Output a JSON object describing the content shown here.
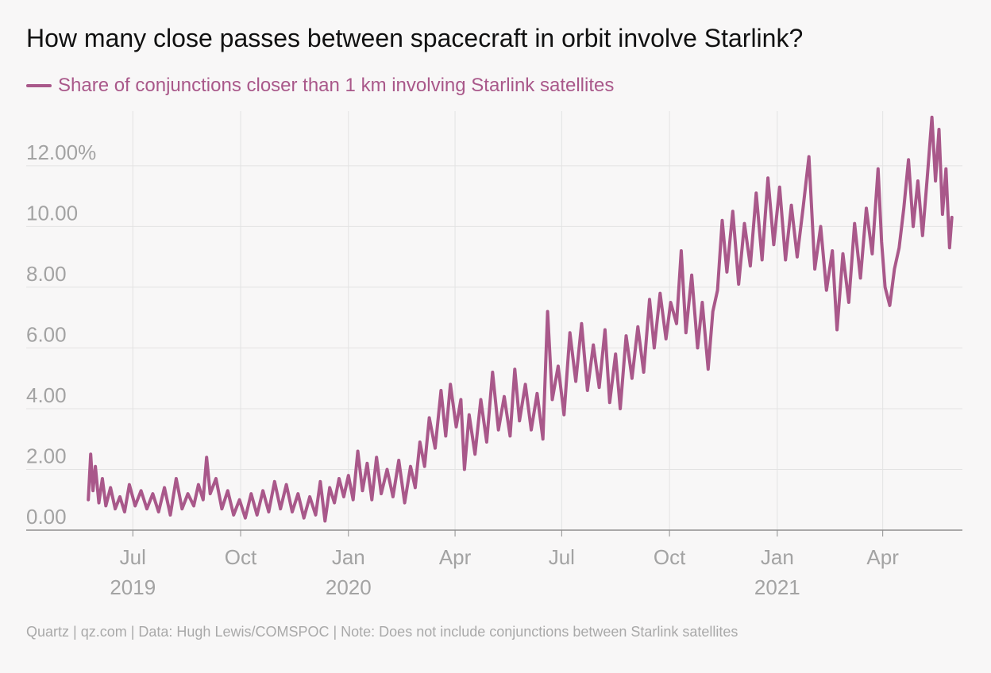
{
  "title": "How many close passes between spacecraft in orbit involve Starlink?",
  "footer": "Quartz | qz.com | Data: Hugh Lewis/COMSPOC | Note: Does not include conjunctions between Starlink satellites",
  "colors": {
    "series": "#a9588a",
    "grid": "#e3e3e3",
    "axis": "#8f8f8f",
    "tick_label": "#a3a3a3"
  },
  "chart_data": {
    "type": "line",
    "title": "How many close passes between spacecraft in orbit involve Starlink?",
    "xlabel": "",
    "ylabel": "",
    "xlim": [
      "2019-04-01",
      "2021-06-08"
    ],
    "ylim": [
      0,
      13.8
    ],
    "grid": true,
    "legend_position": "top-left",
    "y_ticks": [
      {
        "value": 0,
        "label": "0.00"
      },
      {
        "value": 2,
        "label": "2.00"
      },
      {
        "value": 4,
        "label": "4.00"
      },
      {
        "value": 6,
        "label": "6.00"
      },
      {
        "value": 8,
        "label": "8.00"
      },
      {
        "value": 10,
        "label": "10.00"
      },
      {
        "value": 12,
        "label": "12.00%"
      }
    ],
    "x_ticks": [
      {
        "date": "2019-07-01",
        "label": "Jul",
        "year": "2019"
      },
      {
        "date": "2019-10-01",
        "label": "Oct",
        "year": ""
      },
      {
        "date": "2020-01-01",
        "label": "Jan",
        "year": "2020"
      },
      {
        "date": "2020-04-01",
        "label": "Apr",
        "year": ""
      },
      {
        "date": "2020-07-01",
        "label": "Jul",
        "year": ""
      },
      {
        "date": "2020-10-01",
        "label": "Oct",
        "year": ""
      },
      {
        "date": "2021-01-01",
        "label": "Jan",
        "year": "2021"
      },
      {
        "date": "2021-04-01",
        "label": "Apr",
        "year": ""
      }
    ],
    "series": [
      {
        "name": "Share of conjunctions closer than 1 km involving Starlink satellites",
        "points": [
          {
            "x": "2019-05-24",
            "y": 1.0
          },
          {
            "x": "2019-05-26",
            "y": 2.5
          },
          {
            "x": "2019-05-28",
            "y": 1.3
          },
          {
            "x": "2019-05-30",
            "y": 2.1
          },
          {
            "x": "2019-06-02",
            "y": 0.9
          },
          {
            "x": "2019-06-05",
            "y": 1.7
          },
          {
            "x": "2019-06-08",
            "y": 0.8
          },
          {
            "x": "2019-06-12",
            "y": 1.4
          },
          {
            "x": "2019-06-16",
            "y": 0.7
          },
          {
            "x": "2019-06-20",
            "y": 1.1
          },
          {
            "x": "2019-06-24",
            "y": 0.6
          },
          {
            "x": "2019-06-28",
            "y": 1.5
          },
          {
            "x": "2019-07-03",
            "y": 0.8
          },
          {
            "x": "2019-07-08",
            "y": 1.3
          },
          {
            "x": "2019-07-13",
            "y": 0.7
          },
          {
            "x": "2019-07-18",
            "y": 1.2
          },
          {
            "x": "2019-07-23",
            "y": 0.6
          },
          {
            "x": "2019-07-28",
            "y": 1.4
          },
          {
            "x": "2019-08-02",
            "y": 0.5
          },
          {
            "x": "2019-08-07",
            "y": 1.7
          },
          {
            "x": "2019-08-12",
            "y": 0.7
          },
          {
            "x": "2019-08-17",
            "y": 1.2
          },
          {
            "x": "2019-08-22",
            "y": 0.8
          },
          {
            "x": "2019-08-26",
            "y": 1.5
          },
          {
            "x": "2019-08-30",
            "y": 1.0
          },
          {
            "x": "2019-09-02",
            "y": 2.4
          },
          {
            "x": "2019-09-05",
            "y": 1.2
          },
          {
            "x": "2019-09-10",
            "y": 1.7
          },
          {
            "x": "2019-09-15",
            "y": 0.7
          },
          {
            "x": "2019-09-20",
            "y": 1.3
          },
          {
            "x": "2019-09-25",
            "y": 0.5
          },
          {
            "x": "2019-09-30",
            "y": 1.0
          },
          {
            "x": "2019-10-05",
            "y": 0.4
          },
          {
            "x": "2019-10-10",
            "y": 1.2
          },
          {
            "x": "2019-10-15",
            "y": 0.5
          },
          {
            "x": "2019-10-20",
            "y": 1.3
          },
          {
            "x": "2019-10-25",
            "y": 0.6
          },
          {
            "x": "2019-10-30",
            "y": 1.6
          },
          {
            "x": "2019-11-04",
            "y": 0.7
          },
          {
            "x": "2019-11-09",
            "y": 1.5
          },
          {
            "x": "2019-11-14",
            "y": 0.6
          },
          {
            "x": "2019-11-19",
            "y": 1.2
          },
          {
            "x": "2019-11-24",
            "y": 0.4
          },
          {
            "x": "2019-11-29",
            "y": 1.1
          },
          {
            "x": "2019-12-04",
            "y": 0.5
          },
          {
            "x": "2019-12-08",
            "y": 1.6
          },
          {
            "x": "2019-12-12",
            "y": 0.3
          },
          {
            "x": "2019-12-16",
            "y": 1.4
          },
          {
            "x": "2019-12-20",
            "y": 0.9
          },
          {
            "x": "2019-12-24",
            "y": 1.7
          },
          {
            "x": "2019-12-28",
            "y": 1.1
          },
          {
            "x": "2020-01-01",
            "y": 1.8
          },
          {
            "x": "2020-01-05",
            "y": 1.0
          },
          {
            "x": "2020-01-09",
            "y": 2.6
          },
          {
            "x": "2020-01-13",
            "y": 1.3
          },
          {
            "x": "2020-01-17",
            "y": 2.2
          },
          {
            "x": "2020-01-21",
            "y": 1.0
          },
          {
            "x": "2020-01-25",
            "y": 2.4
          },
          {
            "x": "2020-01-29",
            "y": 1.2
          },
          {
            "x": "2020-02-03",
            "y": 2.0
          },
          {
            "x": "2020-02-08",
            "y": 1.1
          },
          {
            "x": "2020-02-13",
            "y": 2.3
          },
          {
            "x": "2020-02-18",
            "y": 0.9
          },
          {
            "x": "2020-02-23",
            "y": 2.1
          },
          {
            "x": "2020-02-27",
            "y": 1.4
          },
          {
            "x": "2020-03-02",
            "y": 2.9
          },
          {
            "x": "2020-03-06",
            "y": 2.1
          },
          {
            "x": "2020-03-10",
            "y": 3.7
          },
          {
            "x": "2020-03-15",
            "y": 2.7
          },
          {
            "x": "2020-03-20",
            "y": 4.6
          },
          {
            "x": "2020-03-24",
            "y": 3.1
          },
          {
            "x": "2020-03-28",
            "y": 4.8
          },
          {
            "x": "2020-04-02",
            "y": 3.4
          },
          {
            "x": "2020-04-06",
            "y": 4.3
          },
          {
            "x": "2020-04-09",
            "y": 2.0
          },
          {
            "x": "2020-04-13",
            "y": 3.8
          },
          {
            "x": "2020-04-18",
            "y": 2.5
          },
          {
            "x": "2020-04-23",
            "y": 4.3
          },
          {
            "x": "2020-04-28",
            "y": 2.9
          },
          {
            "x": "2020-05-03",
            "y": 5.2
          },
          {
            "x": "2020-05-08",
            "y": 3.3
          },
          {
            "x": "2020-05-13",
            "y": 4.4
          },
          {
            "x": "2020-05-18",
            "y": 3.1
          },
          {
            "x": "2020-05-22",
            "y": 5.3
          },
          {
            "x": "2020-05-26",
            "y": 3.6
          },
          {
            "x": "2020-05-31",
            "y": 4.8
          },
          {
            "x": "2020-06-05",
            "y": 3.3
          },
          {
            "x": "2020-06-10",
            "y": 4.5
          },
          {
            "x": "2020-06-15",
            "y": 3.0
          },
          {
            "x": "2020-06-19",
            "y": 7.2
          },
          {
            "x": "2020-06-23",
            "y": 4.3
          },
          {
            "x": "2020-06-28",
            "y": 5.4
          },
          {
            "x": "2020-07-03",
            "y": 3.8
          },
          {
            "x": "2020-07-08",
            "y": 6.5
          },
          {
            "x": "2020-07-13",
            "y": 4.9
          },
          {
            "x": "2020-07-18",
            "y": 6.8
          },
          {
            "x": "2020-07-23",
            "y": 4.6
          },
          {
            "x": "2020-07-28",
            "y": 6.1
          },
          {
            "x": "2020-08-02",
            "y": 4.7
          },
          {
            "x": "2020-08-07",
            "y": 6.6
          },
          {
            "x": "2020-08-11",
            "y": 4.2
          },
          {
            "x": "2020-08-16",
            "y": 5.8
          },
          {
            "x": "2020-08-20",
            "y": 4.0
          },
          {
            "x": "2020-08-25",
            "y": 6.4
          },
          {
            "x": "2020-08-30",
            "y": 5.0
          },
          {
            "x": "2020-09-04",
            "y": 6.7
          },
          {
            "x": "2020-09-09",
            "y": 5.2
          },
          {
            "x": "2020-09-14",
            "y": 7.6
          },
          {
            "x": "2020-09-18",
            "y": 6.0
          },
          {
            "x": "2020-09-23",
            "y": 7.8
          },
          {
            "x": "2020-09-28",
            "y": 6.3
          },
          {
            "x": "2020-10-02",
            "y": 7.5
          },
          {
            "x": "2020-10-07",
            "y": 6.8
          },
          {
            "x": "2020-10-11",
            "y": 9.2
          },
          {
            "x": "2020-10-15",
            "y": 6.5
          },
          {
            "x": "2020-10-20",
            "y": 8.4
          },
          {
            "x": "2020-10-25",
            "y": 6.0
          },
          {
            "x": "2020-10-29",
            "y": 7.5
          },
          {
            "x": "2020-11-03",
            "y": 5.3
          },
          {
            "x": "2020-11-07",
            "y": 7.2
          },
          {
            "x": "2020-11-11",
            "y": 7.9
          },
          {
            "x": "2020-11-15",
            "y": 10.2
          },
          {
            "x": "2020-11-19",
            "y": 8.5
          },
          {
            "x": "2020-11-24",
            "y": 10.5
          },
          {
            "x": "2020-11-29",
            "y": 8.1
          },
          {
            "x": "2020-12-04",
            "y": 10.1
          },
          {
            "x": "2020-12-09",
            "y": 8.7
          },
          {
            "x": "2020-12-14",
            "y": 11.1
          },
          {
            "x": "2020-12-19",
            "y": 8.9
          },
          {
            "x": "2020-12-24",
            "y": 11.6
          },
          {
            "x": "2020-12-29",
            "y": 9.4
          },
          {
            "x": "2021-01-03",
            "y": 11.3
          },
          {
            "x": "2021-01-08",
            "y": 8.9
          },
          {
            "x": "2021-01-13",
            "y": 10.7
          },
          {
            "x": "2021-01-18",
            "y": 9.0
          },
          {
            "x": "2021-01-23",
            "y": 10.6
          },
          {
            "x": "2021-01-28",
            "y": 12.3
          },
          {
            "x": "2021-02-02",
            "y": 8.6
          },
          {
            "x": "2021-02-07",
            "y": 10.0
          },
          {
            "x": "2021-02-12",
            "y": 7.9
          },
          {
            "x": "2021-02-17",
            "y": 9.2
          },
          {
            "x": "2021-02-21",
            "y": 6.6
          },
          {
            "x": "2021-02-26",
            "y": 9.1
          },
          {
            "x": "2021-03-03",
            "y": 7.5
          },
          {
            "x": "2021-03-08",
            "y": 10.1
          },
          {
            "x": "2021-03-13",
            "y": 8.3
          },
          {
            "x": "2021-03-18",
            "y": 10.6
          },
          {
            "x": "2021-03-23",
            "y": 9.1
          },
          {
            "x": "2021-03-28",
            "y": 11.9
          },
          {
            "x": "2021-03-31",
            "y": 9.5
          },
          {
            "x": "2021-04-03",
            "y": 8.0
          },
          {
            "x": "2021-04-07",
            "y": 7.4
          },
          {
            "x": "2021-04-11",
            "y": 8.6
          },
          {
            "x": "2021-04-15",
            "y": 9.3
          },
          {
            "x": "2021-04-19",
            "y": 10.6
          },
          {
            "x": "2021-04-23",
            "y": 12.2
          },
          {
            "x": "2021-04-27",
            "y": 10.0
          },
          {
            "x": "2021-05-01",
            "y": 11.5
          },
          {
            "x": "2021-05-05",
            "y": 9.7
          },
          {
            "x": "2021-05-09",
            "y": 11.6
          },
          {
            "x": "2021-05-13",
            "y": 13.6
          },
          {
            "x": "2021-05-16",
            "y": 11.5
          },
          {
            "x": "2021-05-19",
            "y": 13.2
          },
          {
            "x": "2021-05-22",
            "y": 10.4
          },
          {
            "x": "2021-05-25",
            "y": 11.9
          },
          {
            "x": "2021-05-28",
            "y": 9.3
          },
          {
            "x": "2021-05-30",
            "y": 10.3
          }
        ]
      }
    ]
  }
}
